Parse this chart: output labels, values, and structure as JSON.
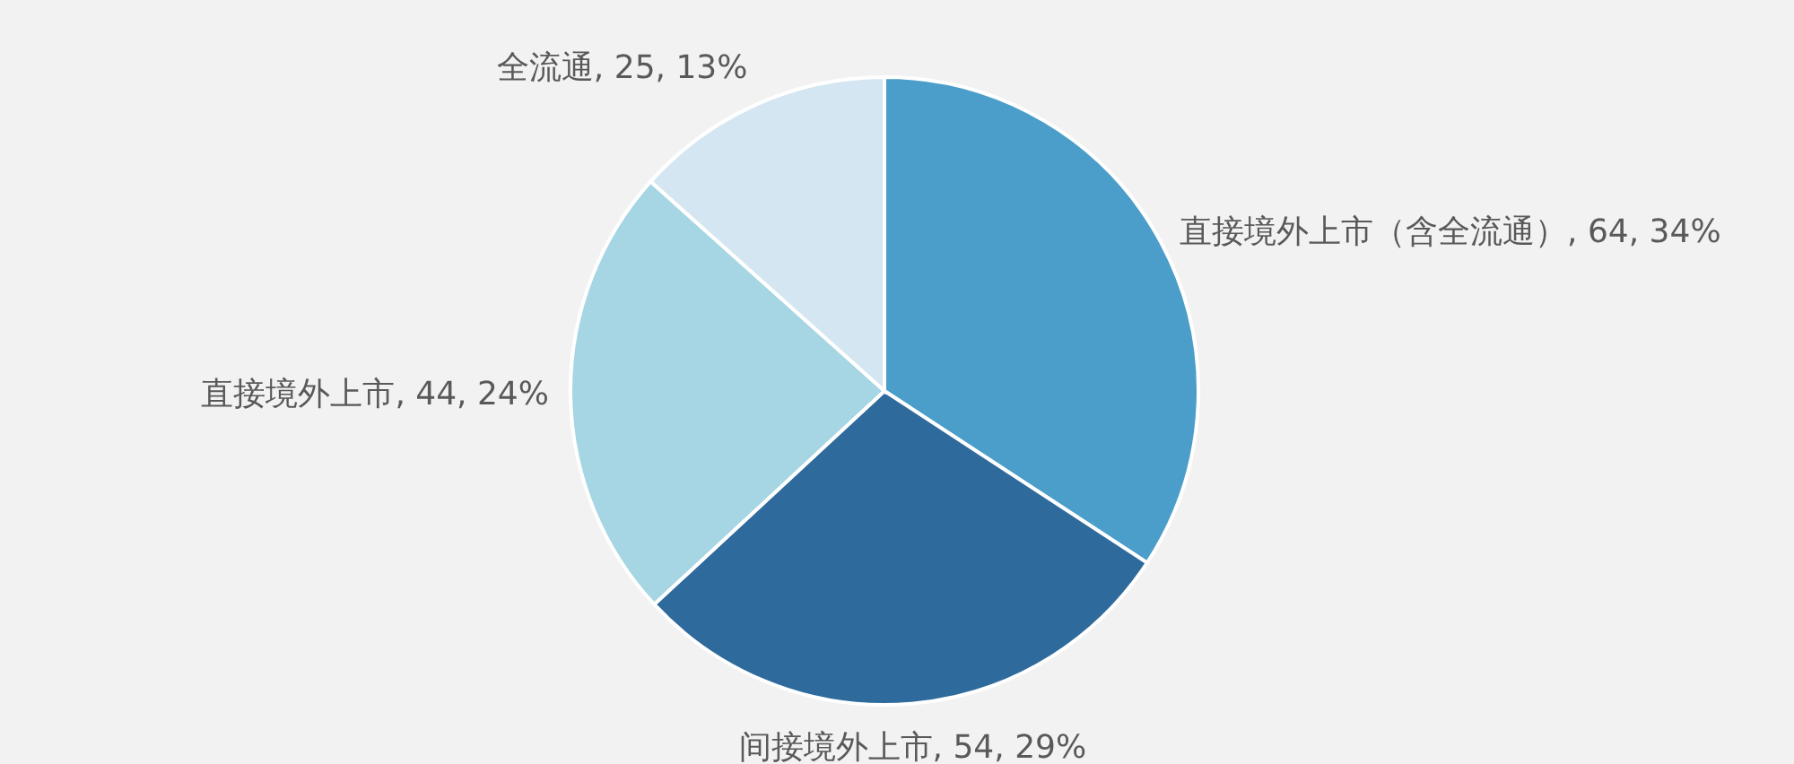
{
  "chart_data": {
    "type": "pie",
    "categories": [
      "直接境外上市（含全流通）",
      "间接境外上市",
      "直接境外上市",
      "全流通"
    ],
    "values": [
      64,
      54,
      44,
      25
    ],
    "value_labels": [
      "64, 34%",
      "54, 29%",
      "44, 24%",
      "25, 13%"
    ],
    "colors": [
      "#4a9ec9",
      "#2e6a9c",
      "#a6d5e3",
      "#d4e6f2"
    ]
  }
}
